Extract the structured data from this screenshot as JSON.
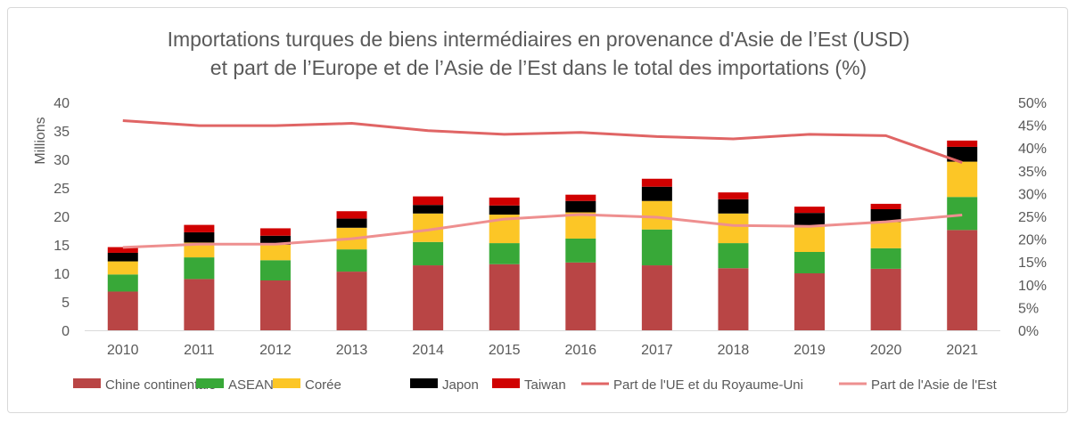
{
  "chart_data": {
    "type": "bar",
    "stacked": true,
    "title": "Importations turques de biens intermédiaires en provenance d'Asie de l’Est (USD)",
    "subtitle": "et part de l’Europe et de l’Asie de l’Est dans le total des importations (%)",
    "ylabel": "Millions",
    "ylim": [
      0,
      40
    ],
    "yticks": [
      "0",
      "5",
      "10",
      "15",
      "20",
      "25",
      "30",
      "35",
      "40"
    ],
    "y2lim": [
      0,
      50
    ],
    "y2ticks": [
      "0%",
      "5%",
      "10%",
      "15%",
      "20%",
      "25%",
      "30%",
      "35%",
      "40%",
      "45%",
      "50%"
    ],
    "categories": [
      "2010",
      "2011",
      "2012",
      "2013",
      "2014",
      "2015",
      "2016",
      "2017",
      "2018",
      "2019",
      "2020",
      "2021"
    ],
    "grid": false,
    "legend": "bottom",
    "series": [
      {
        "name": "Chine continentale",
        "kind": "bar",
        "color": "#b94545",
        "values": [
          6.8,
          9.0,
          8.75,
          10.3,
          11.4,
          11.6,
          11.9,
          11.4,
          10.9,
          10.0,
          10.8,
          17.6
        ]
      },
      {
        "name": "ASEAN",
        "kind": "bar",
        "color": "#38a838",
        "values": [
          3.0,
          3.8,
          3.55,
          3.9,
          4.1,
          3.7,
          4.2,
          6.3,
          4.4,
          3.75,
          3.6,
          5.8
        ]
      },
      {
        "name": "Corée",
        "kind": "bar",
        "color": "#fcc626",
        "values": [
          2.3,
          2.6,
          2.7,
          3.8,
          5.0,
          5.0,
          4.6,
          5.0,
          5.2,
          4.65,
          4.6,
          6.2
        ]
      },
      {
        "name": "Japon",
        "kind": "bar",
        "color": "#000000",
        "values": [
          1.5,
          1.8,
          1.6,
          1.6,
          1.5,
          1.6,
          2.0,
          2.5,
          2.5,
          2.2,
          2.25,
          2.6
        ]
      },
      {
        "name": "Taiwan",
        "kind": "bar",
        "color": "#d00000",
        "values": [
          1.0,
          1.3,
          1.3,
          1.3,
          1.5,
          1.4,
          1.1,
          1.4,
          1.2,
          1.1,
          0.95,
          1.1
        ]
      },
      {
        "name": "Part de l'UE et du Royaume-Uni",
        "kind": "line",
        "axis": "right",
        "color": "#e06565",
        "values": [
          46.0,
          44.9,
          44.9,
          45.4,
          43.8,
          43.0,
          43.4,
          42.5,
          42.0,
          43.0,
          42.7,
          36.8
        ]
      },
      {
        "name": "Part de l'Asie de l'Est",
        "kind": "line",
        "axis": "right",
        "color": "#ee8f8f",
        "values": [
          18.2,
          18.9,
          18.9,
          20.1,
          22.0,
          24.4,
          25.4,
          24.8,
          23.0,
          22.8,
          23.8,
          25.3
        ]
      }
    ]
  }
}
